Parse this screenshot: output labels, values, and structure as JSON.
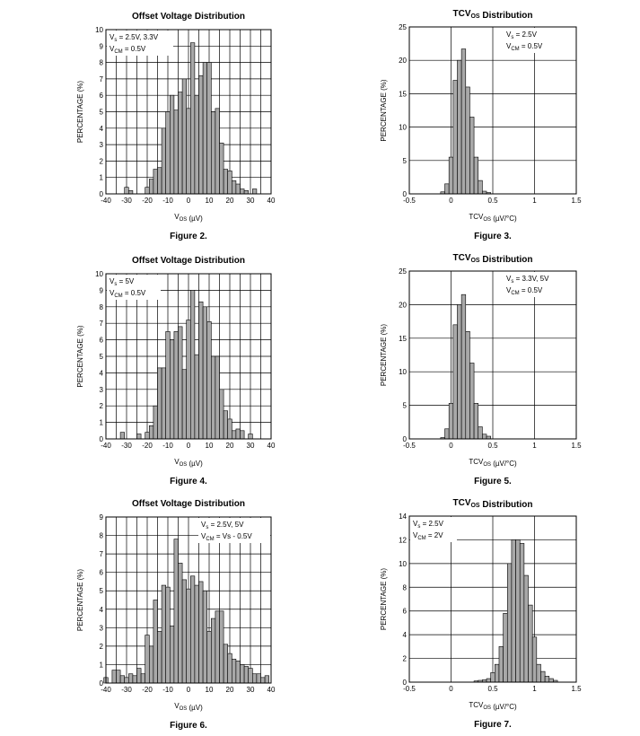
{
  "chart_data": [
    {
      "type": "bar",
      "title": "Offset Voltage Distribution",
      "figure_label": "Figure 2.",
      "xlabel": "V_OS (µV)",
      "ylabel": "PERCENTAGE (%)",
      "xlim": [
        -40,
        40
      ],
      "ylim": [
        0,
        10
      ],
      "x_ticks": [
        -40,
        -30,
        -20,
        -10,
        0,
        10,
        20,
        30,
        40
      ],
      "y_ticks": [
        0,
        1,
        2,
        3,
        4,
        5,
        6,
        7,
        8,
        9,
        10
      ],
      "bin_width": 2,
      "legend_lines": [
        "Vs = 2.5V, 3.3V",
        "VCM = 0.5V"
      ],
      "bins": [
        {
          "x": -30,
          "y": 0.4
        },
        {
          "x": -28,
          "y": 0.2
        },
        {
          "x": -20,
          "y": 0.4
        },
        {
          "x": -18,
          "y": 0.9
        },
        {
          "x": -16,
          "y": 1.5
        },
        {
          "x": -14,
          "y": 1.6
        },
        {
          "x": -12,
          "y": 4.0
        },
        {
          "x": -10,
          "y": 5.0
        },
        {
          "x": -8,
          "y": 6.0
        },
        {
          "x": -6,
          "y": 5.1
        },
        {
          "x": -4,
          "y": 6.2
        },
        {
          "x": -2,
          "y": 7.0
        },
        {
          "x": 0,
          "y": 5.2
        },
        {
          "x": 2,
          "y": 9.2
        },
        {
          "x": 4,
          "y": 6.0
        },
        {
          "x": 6,
          "y": 7.2
        },
        {
          "x": 8,
          "y": 8.0
        },
        {
          "x": 10,
          "y": 8.0
        },
        {
          "x": 12,
          "y": 5.0
        },
        {
          "x": 14,
          "y": 5.2
        },
        {
          "x": 16,
          "y": 3.1
        },
        {
          "x": 18,
          "y": 1.5
        },
        {
          "x": 20,
          "y": 1.4
        },
        {
          "x": 22,
          "y": 0.8
        },
        {
          "x": 24,
          "y": 0.6
        },
        {
          "x": 26,
          "y": 0.3
        },
        {
          "x": 28,
          "y": 0.2
        },
        {
          "x": 32,
          "y": 0.3
        }
      ]
    },
    {
      "type": "bar",
      "title": "TCV_OS Distribution",
      "figure_label": "Figure 3.",
      "xlabel": "TCV_OS (µV/°C)",
      "ylabel": "PERCENTAGE (%)",
      "xlim": [
        -0.5,
        1.5
      ],
      "ylim": [
        0,
        25
      ],
      "x_ticks": [
        -0.5,
        0,
        0.5,
        1,
        1.5
      ],
      "y_ticks": [
        0,
        5,
        10,
        15,
        20,
        25
      ],
      "bin_width": 0.05,
      "legend_lines": [
        "Vs = 2.5V",
        "VCM = 0.5V"
      ],
      "bins": [
        {
          "x": -0.1,
          "y": 0.3
        },
        {
          "x": -0.05,
          "y": 1.5
        },
        {
          "x": 0.0,
          "y": 5.5
        },
        {
          "x": 0.05,
          "y": 17.0
        },
        {
          "x": 0.1,
          "y": 20.0
        },
        {
          "x": 0.15,
          "y": 21.7
        },
        {
          "x": 0.2,
          "y": 16.0
        },
        {
          "x": 0.25,
          "y": 11.5
        },
        {
          "x": 0.3,
          "y": 5.5
        },
        {
          "x": 0.35,
          "y": 2.0
        },
        {
          "x": 0.4,
          "y": 0.4
        },
        {
          "x": 0.45,
          "y": 0.2
        }
      ]
    },
    {
      "type": "bar",
      "title": "Offset Voltage Distribution",
      "figure_label": "Figure 4.",
      "xlabel": "V_OS (µV)",
      "ylabel": "PERCENTAGE (%)",
      "xlim": [
        -40,
        40
      ],
      "ylim": [
        0,
        10
      ],
      "x_ticks": [
        -40,
        -30,
        -20,
        -10,
        0,
        10,
        20,
        30,
        40
      ],
      "y_ticks": [
        0,
        1,
        2,
        3,
        4,
        5,
        6,
        7,
        8,
        9,
        10
      ],
      "bin_width": 2,
      "legend_lines": [
        "Vs = 5V",
        "VCM = 0.5V"
      ],
      "bins": [
        {
          "x": -32,
          "y": 0.4
        },
        {
          "x": -24,
          "y": 0.3
        },
        {
          "x": -20,
          "y": 0.4
        },
        {
          "x": -18,
          "y": 0.8
        },
        {
          "x": -16,
          "y": 2.0
        },
        {
          "x": -14,
          "y": 4.3
        },
        {
          "x": -12,
          "y": 4.3
        },
        {
          "x": -10,
          "y": 6.5
        },
        {
          "x": -8,
          "y": 6.0
        },
        {
          "x": -6,
          "y": 6.5
        },
        {
          "x": -4,
          "y": 6.8
        },
        {
          "x": -2,
          "y": 4.2
        },
        {
          "x": 0,
          "y": 7.2
        },
        {
          "x": 2,
          "y": 9.0
        },
        {
          "x": 4,
          "y": 5.1
        },
        {
          "x": 6,
          "y": 8.3
        },
        {
          "x": 8,
          "y": 8.0
        },
        {
          "x": 10,
          "y": 7.1
        },
        {
          "x": 12,
          "y": 5.0
        },
        {
          "x": 14,
          "y": 5.0
        },
        {
          "x": 16,
          "y": 3.0
        },
        {
          "x": 18,
          "y": 1.7
        },
        {
          "x": 20,
          "y": 1.2
        },
        {
          "x": 22,
          "y": 0.5
        },
        {
          "x": 24,
          "y": 0.6
        },
        {
          "x": 26,
          "y": 0.5
        },
        {
          "x": 30,
          "y": 0.3
        }
      ]
    },
    {
      "type": "bar",
      "title": "TCV_OS Distribution",
      "figure_label": "Figure 5.",
      "xlabel": "TCV_OS (µV/°C)",
      "ylabel": "PERCENTAGE (%)",
      "xlim": [
        -0.5,
        1.5
      ],
      "ylim": [
        0,
        25
      ],
      "x_ticks": [
        -0.5,
        0,
        0.5,
        1,
        1.5
      ],
      "y_ticks": [
        0,
        5,
        10,
        15,
        20,
        25
      ],
      "bin_width": 0.05,
      "legend_lines": [
        "Vs = 3.3V, 5V",
        "VCM = 0.5V"
      ],
      "bins": [
        {
          "x": -0.1,
          "y": 0.2
        },
        {
          "x": -0.05,
          "y": 1.5
        },
        {
          "x": 0.0,
          "y": 5.3
        },
        {
          "x": 0.05,
          "y": 17.0
        },
        {
          "x": 0.1,
          "y": 20.0
        },
        {
          "x": 0.15,
          "y": 21.5
        },
        {
          "x": 0.2,
          "y": 16.0
        },
        {
          "x": 0.25,
          "y": 11.3
        },
        {
          "x": 0.3,
          "y": 5.3
        },
        {
          "x": 0.35,
          "y": 1.8
        },
        {
          "x": 0.4,
          "y": 0.7
        },
        {
          "x": 0.45,
          "y": 0.4
        }
      ]
    },
    {
      "type": "bar",
      "title": "Offset Voltage Distribution",
      "figure_label": "Figure 6.",
      "xlabel": "V_OS (µV)",
      "ylabel": "PERCENTAGE (%)",
      "xlim": [
        -40,
        40
      ],
      "ylim": [
        0,
        9
      ],
      "x_ticks": [
        -40,
        -30,
        -20,
        -10,
        0,
        10,
        20,
        30,
        40
      ],
      "y_ticks": [
        0,
        1,
        2,
        3,
        4,
        5,
        6,
        7,
        8,
        9
      ],
      "bin_width": 2,
      "legend_lines": [
        "Vs = 2.5V, 5V",
        "VCM = Vs - 0.5V"
      ],
      "bins": [
        {
          "x": -40,
          "y": 0.3
        },
        {
          "x": -36,
          "y": 0.7
        },
        {
          "x": -34,
          "y": 0.7
        },
        {
          "x": -32,
          "y": 0.4
        },
        {
          "x": -30,
          "y": 0.3
        },
        {
          "x": -28,
          "y": 0.5
        },
        {
          "x": -26,
          "y": 0.4
        },
        {
          "x": -24,
          "y": 0.8
        },
        {
          "x": -22,
          "y": 0.5
        },
        {
          "x": -20,
          "y": 2.6
        },
        {
          "x": -18,
          "y": 2.0
        },
        {
          "x": -16,
          "y": 4.5
        },
        {
          "x": -14,
          "y": 2.8
        },
        {
          "x": -12,
          "y": 5.3
        },
        {
          "x": -10,
          "y": 5.2
        },
        {
          "x": -8,
          "y": 3.1
        },
        {
          "x": -6,
          "y": 7.8
        },
        {
          "x": -4,
          "y": 6.5
        },
        {
          "x": -2,
          "y": 5.6
        },
        {
          "x": 0,
          "y": 5.1
        },
        {
          "x": 2,
          "y": 5.8
        },
        {
          "x": 4,
          "y": 5.3
        },
        {
          "x": 6,
          "y": 5.5
        },
        {
          "x": 8,
          "y": 5.0
        },
        {
          "x": 10,
          "y": 2.8
        },
        {
          "x": 12,
          "y": 3.5
        },
        {
          "x": 14,
          "y": 3.9
        },
        {
          "x": 16,
          "y": 3.9
        },
        {
          "x": 18,
          "y": 2.1
        },
        {
          "x": 20,
          "y": 1.6
        },
        {
          "x": 22,
          "y": 1.3
        },
        {
          "x": 24,
          "y": 1.2
        },
        {
          "x": 26,
          "y": 1.0
        },
        {
          "x": 28,
          "y": 0.9
        },
        {
          "x": 30,
          "y": 0.8
        },
        {
          "x": 32,
          "y": 0.5
        },
        {
          "x": 34,
          "y": 0.5
        },
        {
          "x": 36,
          "y": 0.3
        },
        {
          "x": 38,
          "y": 0.4
        }
      ]
    },
    {
      "type": "bar",
      "title": "TCV_OS Distribution",
      "figure_label": "Figure 7.",
      "xlabel": "TCV_OS (µV/°C)",
      "ylabel": "PERCENTAGE (%)",
      "xlim": [
        -0.5,
        1.5
      ],
      "ylim": [
        0,
        14
      ],
      "x_ticks": [
        -0.5,
        0,
        0.5,
        1,
        1.5
      ],
      "y_ticks": [
        0,
        2,
        4,
        6,
        8,
        10,
        12,
        14
      ],
      "bin_width": 0.05,
      "legend_lines": [
        "Vs = 2.5V",
        "VCM = 2V"
      ],
      "bins": [
        {
          "x": 0.3,
          "y": 0.1
        },
        {
          "x": 0.35,
          "y": 0.15
        },
        {
          "x": 0.4,
          "y": 0.2
        },
        {
          "x": 0.45,
          "y": 0.3
        },
        {
          "x": 0.5,
          "y": 0.8
        },
        {
          "x": 0.55,
          "y": 1.5
        },
        {
          "x": 0.6,
          "y": 3.0
        },
        {
          "x": 0.65,
          "y": 5.8
        },
        {
          "x": 0.7,
          "y": 10.0
        },
        {
          "x": 0.75,
          "y": 12.0
        },
        {
          "x": 0.8,
          "y": 12.0
        },
        {
          "x": 0.85,
          "y": 11.7
        },
        {
          "x": 0.9,
          "y": 9.0
        },
        {
          "x": 0.95,
          "y": 6.5
        },
        {
          "x": 1.0,
          "y": 3.8
        },
        {
          "x": 1.05,
          "y": 1.5
        },
        {
          "x": 1.1,
          "y": 0.9
        },
        {
          "x": 1.15,
          "y": 0.5
        },
        {
          "x": 1.2,
          "y": 0.3
        },
        {
          "x": 1.25,
          "y": 0.15
        }
      ]
    }
  ]
}
